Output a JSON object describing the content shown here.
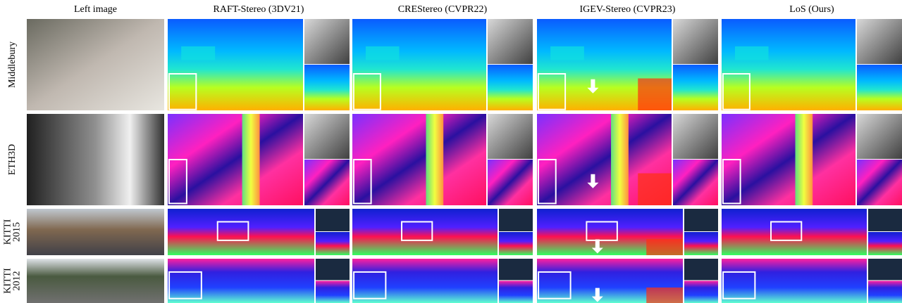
{
  "header": {
    "columns": [
      "Left image",
      "RAFT-Stereo (3DV21)",
      "CREStereo (CVPR22)",
      "IGEV-Stereo (CVPR23)",
      "LoS (Ours)"
    ]
  },
  "rows": [
    {
      "label": [
        "Middlebury"
      ]
    },
    {
      "label": [
        "ETH3D"
      ]
    },
    {
      "label": [
        "KITTI",
        "2015"
      ]
    },
    {
      "label": [
        "KITTI",
        "2012"
      ]
    }
  ]
}
